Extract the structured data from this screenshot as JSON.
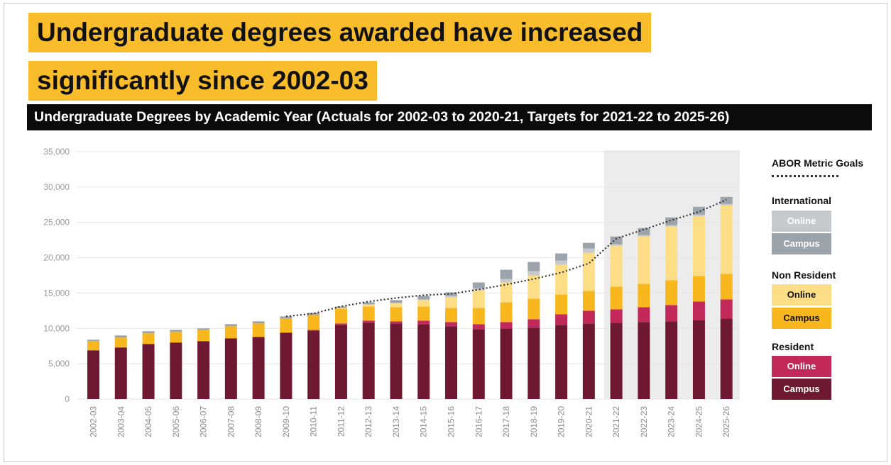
{
  "headline": {
    "line1": "Undergraduate degrees awarded have increased",
    "line2": "significantly since 2002-03"
  },
  "subtitle": "Undergraduate Degrees by Academic Year (Actuals for 2002-03 to 2020-21, Targets for 2021-22 to 2025-26)",
  "legend": {
    "goals_label": "ABOR Metric Goals",
    "international_label": "International",
    "international_online": "Online",
    "international_campus": "Campus",
    "nonresident_label": "Non Resident",
    "nonresident_online": "Online",
    "nonresident_campus": "Campus",
    "resident_label": "Resident",
    "resident_online": "Online",
    "resident_campus": "Campus"
  },
  "colors": {
    "headline_bg": "#f9bd2b",
    "subtitle_bg": "#0b0b0b",
    "resident_campus": "#6e1832",
    "resident_online": "#c2285a",
    "nonresident_campus": "#f8b71d",
    "nonresident_online": "#fdde86",
    "international_campus": "#9ca3aa",
    "international_online": "#c7cacd",
    "goal_line": "#333333",
    "target_shade": "#ececec"
  },
  "chart_data": {
    "type": "bar",
    "stacked": true,
    "categories": [
      "2002-03",
      "2003-04",
      "2004-05",
      "2005-06",
      "2006-07",
      "2007-08",
      "2008-09",
      "2009-10",
      "2010-11",
      "2011-12",
      "2012-13",
      "2013-14",
      "2014-15",
      "2015-16",
      "2016-17",
      "2017-18",
      "2018-19",
      "2019-20",
      "2020-21",
      "2021-22",
      "2022-23",
      "2023-24",
      "2024-25",
      "2025-26"
    ],
    "ylim": [
      0,
      35000
    ],
    "yticks": [
      0,
      5000,
      10000,
      15000,
      20000,
      25000,
      30000,
      35000
    ],
    "ytick_labels": [
      "0",
      "5,000",
      "10,000",
      "15,000",
      "20,000",
      "25,000",
      "30,000",
      "35,000"
    ],
    "target_start_category": "2021-22",
    "series": [
      {
        "name": "Resident Campus",
        "values": [
          6900,
          7300,
          7800,
          8000,
          8200,
          8600,
          8800,
          9400,
          9700,
          10500,
          10800,
          10700,
          10600,
          10300,
          9900,
          10000,
          10100,
          10500,
          10700,
          10800,
          10900,
          11000,
          11200,
          11400
        ]
      },
      {
        "name": "Resident Online",
        "values": [
          0,
          0,
          0,
          0,
          0,
          0,
          0,
          0,
          100,
          200,
          300,
          300,
          500,
          600,
          700,
          900,
          1200,
          1500,
          1800,
          1900,
          2100,
          2300,
          2600,
          2700
        ]
      },
      {
        "name": "Non Resident Campus",
        "values": [
          1300,
          1400,
          1500,
          1500,
          1600,
          1700,
          1900,
          2000,
          2100,
          2100,
          2000,
          2000,
          2000,
          2000,
          2300,
          2800,
          2900,
          2800,
          2800,
          3200,
          3300,
          3500,
          3600,
          3600
        ]
      },
      {
        "name": "Non Resident Online",
        "values": [
          0,
          0,
          0,
          0,
          0,
          0,
          0,
          0,
          0,
          100,
          300,
          600,
          900,
          1500,
          2500,
          2800,
          3300,
          4200,
          5400,
          5800,
          6700,
          7600,
          8500,
          9700
        ]
      },
      {
        "name": "International Online",
        "values": [
          0,
          0,
          0,
          0,
          0,
          0,
          0,
          0,
          0,
          0,
          0,
          0,
          100,
          200,
          300,
          500,
          600,
          600,
          600,
          200,
          200,
          200,
          200,
          200
        ]
      },
      {
        "name": "International Campus",
        "values": [
          200,
          300,
          300,
          300,
          200,
          300,
          300,
          300,
          300,
          200,
          300,
          400,
          500,
          500,
          800,
          1300,
          1300,
          1000,
          800,
          1100,
          1000,
          1100,
          1100,
          1000
        ]
      }
    ],
    "goal_line": {
      "name": "ABOR Metric Goals",
      "start_category": "2009-10",
      "values": [
        null,
        null,
        null,
        null,
        null,
        null,
        null,
        11700,
        12100,
        13100,
        13800,
        14300,
        14700,
        14900,
        15500,
        16200,
        17000,
        17900,
        19200,
        22700,
        24000,
        25300,
        26500,
        28200
      ]
    }
  }
}
